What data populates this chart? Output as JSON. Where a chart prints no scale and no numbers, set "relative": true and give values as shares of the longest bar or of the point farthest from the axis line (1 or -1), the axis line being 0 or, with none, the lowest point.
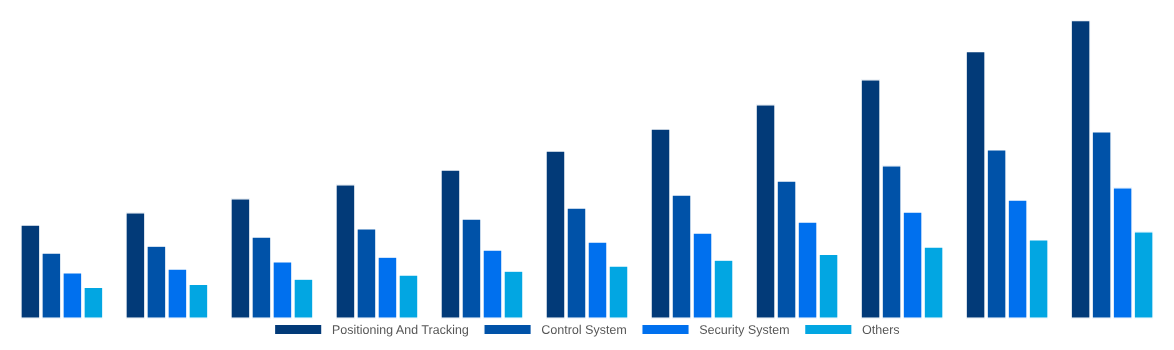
{
  "chart_data": {
    "type": "bar",
    "relative": true,
    "categories": [
      null,
      null,
      null,
      null,
      null,
      null,
      null,
      null,
      null,
      null,
      null
    ],
    "legend": "bottom",
    "grid": false,
    "series": [
      {
        "name": "Positioning And Tracking",
        "color": "#023a78",
        "values": [
          0.313,
          0.354,
          0.401,
          0.448,
          0.498,
          0.562,
          0.636,
          0.717,
          0.801,
          0.896,
          1
        ]
      },
      {
        "name": "Control System",
        "color": "#0052a8",
        "values": [
          0.219,
          0.242,
          0.273,
          0.3,
          0.333,
          0.37,
          0.414,
          0.461,
          0.512,
          0.566,
          0.626
        ]
      },
      {
        "name": "Security System",
        "color": "#0070ee",
        "values": [
          0.152,
          0.165,
          0.189,
          0.205,
          0.229,
          0.256,
          0.286,
          0.323,
          0.357,
          0.397,
          0.438
        ]
      },
      {
        "name": "Others",
        "color": "#02a6e2",
        "values": [
          0.104,
          0.114,
          0.131,
          0.145,
          0.158,
          0.175,
          0.195,
          0.215,
          0.239,
          0.263,
          0.29
        ]
      }
    ]
  }
}
